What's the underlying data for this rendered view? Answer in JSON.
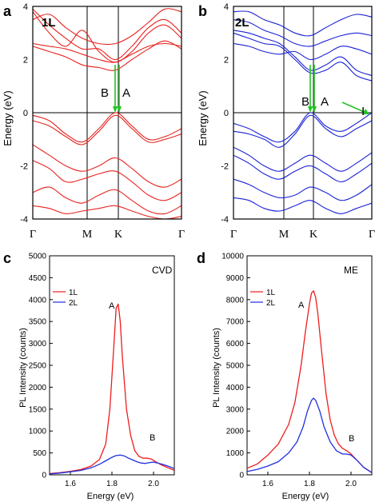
{
  "chart_data": [
    {
      "panel": "a",
      "type": "line",
      "tag": "1L",
      "ylabel": "Energy (eV)",
      "ylim": [
        -4,
        4
      ],
      "yticks": [
        "4",
        "2",
        "0",
        "-2",
        "-4"
      ],
      "xticks": [
        "Γ",
        "M",
        "K",
        "Γ"
      ],
      "color": "#e8231f",
      "annotations": [
        "B",
        "A"
      ],
      "transition_color": "#22c322",
      "bands": [
        {
          "kind": "conduction",
          "values": [
            3.8,
            3.0,
            2.5,
            3.1,
            2.3,
            1.9,
            2.3,
            3.0,
            3.3,
            2.8
          ]
        },
        {
          "kind": "conduction",
          "values": [
            3.9,
            3.3,
            2.8,
            2.4,
            2.4,
            2.0,
            2.5,
            3.2,
            3.5,
            3.0
          ]
        },
        {
          "kind": "conduction",
          "values": [
            2.5,
            2.3,
            2.1,
            1.8,
            1.7,
            1.6,
            2.0,
            2.4,
            2.7,
            2.4
          ]
        },
        {
          "kind": "conduction",
          "values": [
            2.6,
            2.5,
            2.4,
            2.2,
            2.0,
            1.9,
            2.2,
            2.5,
            2.6,
            2.5
          ]
        },
        {
          "kind": "conduction",
          "values": [
            3.5,
            3.7,
            3.2,
            2.8,
            2.6,
            2.6,
            2.9,
            3.4,
            3.9,
            3.8
          ]
        },
        {
          "kind": "valence",
          "values": [
            -0.1,
            -0.3,
            -0.8,
            -1.1,
            -0.6,
            0.0,
            -0.5,
            -1.0,
            -0.9,
            -0.6
          ]
        },
        {
          "kind": "valence",
          "values": [
            -0.3,
            -0.5,
            -0.9,
            -1.2,
            -0.7,
            -0.1,
            -0.6,
            -1.1,
            -1.0,
            -0.8
          ]
        },
        {
          "kind": "valence",
          "values": [
            -1.2,
            -1.6,
            -2.0,
            -2.2,
            -2.0,
            -1.7,
            -2.1,
            -2.6,
            -2.8,
            -2.5
          ]
        },
        {
          "kind": "valence",
          "values": [
            -1.8,
            -2.1,
            -2.6,
            -2.5,
            -2.3,
            -2.2,
            -2.6,
            -3.1,
            -3.3,
            -3.0
          ]
        },
        {
          "kind": "valence",
          "values": [
            -3.0,
            -2.8,
            -3.2,
            -3.4,
            -3.1,
            -2.9,
            -3.3,
            -3.7,
            -3.8,
            -3.5
          ]
        },
        {
          "kind": "valence",
          "values": [
            -3.5,
            -3.6,
            -3.8,
            -3.7,
            -3.6,
            -3.5,
            -3.7,
            -3.9,
            -4.0,
            -3.9
          ]
        }
      ]
    },
    {
      "panel": "b",
      "type": "line",
      "tag": "2L",
      "ylabel": "Energy (eV)",
      "ylim": [
        -4,
        4
      ],
      "yticks": [
        "4",
        "2",
        "0",
        "-2",
        "-4"
      ],
      "xticks": [
        "Γ",
        "M",
        "K",
        "Γ"
      ],
      "color": "#1a22d6",
      "annotations": [
        "B",
        "A",
        "I"
      ],
      "transition_color": "#22c322",
      "bands": [
        {
          "kind": "conduction",
          "values": [
            3.0,
            2.8,
            2.6,
            2.5,
            2.0,
            1.5,
            1.6,
            1.9,
            1.4,
            1.2
          ]
        },
        {
          "kind": "conduction",
          "values": [
            3.1,
            3.0,
            2.8,
            2.6,
            2.1,
            1.6,
            1.8,
            2.1,
            1.6,
            1.4
          ]
        },
        {
          "kind": "conduction",
          "values": [
            2.6,
            2.5,
            2.3,
            2.2,
            2.3,
            2.0,
            2.2,
            2.5,
            2.4,
            2.2
          ]
        },
        {
          "kind": "conduction",
          "values": [
            3.5,
            3.4,
            3.1,
            2.9,
            2.6,
            2.5,
            2.7,
            2.9,
            3.0,
            2.9
          ]
        },
        {
          "kind": "conduction",
          "values": [
            3.8,
            3.8,
            3.5,
            3.3,
            3.0,
            2.9,
            3.2,
            3.5,
            3.7,
            3.6
          ]
        },
        {
          "kind": "valence",
          "values": [
            -0.4,
            -0.6,
            -0.9,
            -1.1,
            -0.7,
            0.0,
            -0.5,
            -0.7,
            -0.4,
            0.0
          ]
        },
        {
          "kind": "valence",
          "values": [
            -0.7,
            -0.8,
            -1.0,
            -1.3,
            -0.8,
            -0.1,
            -0.6,
            -0.9,
            -0.6,
            -0.3
          ]
        },
        {
          "kind": "valence",
          "values": [
            -1.3,
            -1.6,
            -2.0,
            -2.2,
            -1.9,
            -1.6,
            -1.9,
            -2.2,
            -1.9,
            -1.5
          ]
        },
        {
          "kind": "valence",
          "values": [
            -1.6,
            -1.9,
            -2.3,
            -2.5,
            -2.2,
            -2.0,
            -2.3,
            -2.6,
            -2.3,
            -1.9
          ]
        },
        {
          "kind": "valence",
          "values": [
            -2.5,
            -2.7,
            -3.0,
            -3.2,
            -3.1,
            -2.8,
            -3.0,
            -3.3,
            -3.1,
            -2.7
          ]
        },
        {
          "kind": "valence",
          "values": [
            -3.2,
            -3.3,
            -3.6,
            -3.7,
            -3.5,
            -3.3,
            -3.6,
            -3.8,
            -3.6,
            -3.4
          ]
        }
      ]
    },
    {
      "panel": "c",
      "type": "line",
      "sample": "CVD",
      "xlabel": "Energy (eV)",
      "ylabel": "PL Intensity (counts)",
      "xlim": [
        1.5,
        2.1
      ],
      "ylim": [
        0,
        5000
      ],
      "xticks": [
        "1.6",
        "1.8",
        "2.0"
      ],
      "yticks": [
        "0",
        "500",
        "1000",
        "1500",
        "2000",
        "2500",
        "3000",
        "3500",
        "4000",
        "4500",
        "5000"
      ],
      "peak_labels": [
        "A",
        "B"
      ],
      "legend": "top-left",
      "series": [
        {
          "name": "1L",
          "color": "#ee1c1c",
          "x": [
            1.5,
            1.55,
            1.6,
            1.65,
            1.7,
            1.74,
            1.77,
            1.79,
            1.81,
            1.82,
            1.83,
            1.84,
            1.85,
            1.87,
            1.89,
            1.91,
            1.93,
            1.95,
            1.97,
            1.99,
            2.01,
            2.04,
            2.07,
            2.1
          ],
          "y": [
            30,
            50,
            80,
            120,
            200,
            350,
            700,
            1500,
            3000,
            3800,
            3900,
            3500,
            2700,
            1500,
            900,
            550,
            420,
            380,
            380,
            360,
            300,
            220,
            160,
            100
          ]
        },
        {
          "name": "2L",
          "color": "#1f2fe0",
          "x": [
            1.5,
            1.55,
            1.6,
            1.65,
            1.7,
            1.74,
            1.77,
            1.8,
            1.82,
            1.84,
            1.86,
            1.88,
            1.9,
            1.92,
            1.94,
            1.96,
            1.98,
            2.0,
            2.02,
            2.05,
            2.08,
            2.1
          ],
          "y": [
            20,
            40,
            70,
            100,
            160,
            240,
            320,
            400,
            440,
            450,
            430,
            380,
            340,
            300,
            270,
            260,
            280,
            290,
            270,
            230,
            180,
            140
          ]
        }
      ]
    },
    {
      "panel": "d",
      "type": "line",
      "sample": "ME",
      "xlabel": "Energy (eV)",
      "ylabel": "PL Intensity (counts)",
      "xlim": [
        1.5,
        2.1
      ],
      "ylim": [
        0,
        10000
      ],
      "xticks": [
        "1.6",
        "1.8",
        "2.0"
      ],
      "yticks": [
        "0",
        "1000",
        "2000",
        "3000",
        "4000",
        "5000",
        "6000",
        "7000",
        "8000",
        "9000",
        "10000"
      ],
      "peak_labels": [
        "A",
        "B"
      ],
      "legend": "top-left",
      "series": [
        {
          "name": "1L",
          "color": "#ee1c1c",
          "x": [
            1.5,
            1.55,
            1.6,
            1.65,
            1.7,
            1.73,
            1.76,
            1.78,
            1.8,
            1.81,
            1.82,
            1.83,
            1.84,
            1.86,
            1.88,
            1.9,
            1.92,
            1.94,
            1.96,
            1.98,
            2.0,
            2.03,
            2.06,
            2.1
          ],
          "y": [
            300,
            500,
            900,
            1400,
            2300,
            3300,
            5000,
            6500,
            7800,
            8300,
            8400,
            8100,
            7400,
            5500,
            3700,
            2500,
            1800,
            1400,
            1200,
            1100,
            950,
            650,
            350,
            100
          ]
        },
        {
          "name": "2L",
          "color": "#1f2fe0",
          "x": [
            1.5,
            1.55,
            1.6,
            1.65,
            1.7,
            1.74,
            1.77,
            1.79,
            1.81,
            1.82,
            1.83,
            1.85,
            1.87,
            1.9,
            1.93,
            1.96,
            1.98,
            2.0,
            2.03,
            2.06,
            2.1
          ],
          "y": [
            150,
            250,
            400,
            600,
            1000,
            1500,
            2200,
            2900,
            3400,
            3500,
            3400,
            2900,
            2200,
            1500,
            1100,
            950,
            950,
            900,
            650,
            350,
            100
          ]
        }
      ]
    }
  ]
}
